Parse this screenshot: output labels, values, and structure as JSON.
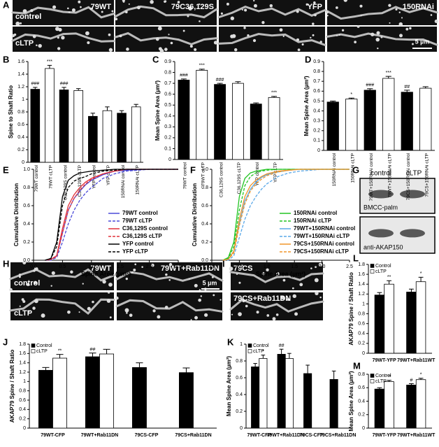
{
  "panel_labels": [
    "A",
    "B",
    "C",
    "D",
    "E",
    "F",
    "G",
    "H",
    "I",
    "J",
    "K",
    "L",
    "M"
  ],
  "images": {
    "A": {
      "columns": [
        "79WT",
        "79C36,129S",
        "YFP",
        "150RNAi"
      ],
      "rows": [
        "control",
        "cLTP"
      ],
      "scale": "5 µm"
    },
    "G": {
      "columns": [
        "control",
        "cLTP"
      ],
      "blots": [
        "BMCC-palm",
        "anti-AKAP150"
      ]
    },
    "H": {
      "columns": [
        "79WT",
        "79WT+Rab11DN"
      ],
      "rows": [
        "control",
        "cLTP"
      ],
      "scale": "5 µm"
    },
    "I": {
      "columns": [
        "79CS",
        "79CS+Rab11DN"
      ]
    }
  },
  "chart_data": [
    {
      "type": "bar",
      "ylabel": "Spine to Shaft Ratio",
      "categories": [
        "79WT control",
        "79WT cLTP",
        "C36,129S control",
        "C36,129S cLTP",
        "YFP control",
        "YFP cLTP",
        "150RNAi control",
        "150RNAi cLTP"
      ],
      "values": [
        1.16,
        1.49,
        1.15,
        1.14,
        0.73,
        0.82,
        0.78,
        0.88
      ],
      "errors": [
        0.03,
        0.05,
        0.04,
        0.03,
        0.05,
        0.06,
        0.04,
        0.04
      ],
      "colors": [
        "#000000",
        "#ffffff",
        "#000000",
        "#ffffff",
        "#000000",
        "#ffffff",
        "#000000",
        "#ffffff"
      ],
      "ylim": [
        0,
        1.6
      ],
      "yticks": [
        0,
        0.2,
        0.4,
        0.6,
        0.8,
        1,
        1.2,
        1.4,
        1.6
      ],
      "annotations": [
        {
          "text": "###",
          "index": 0
        },
        {
          "text": "***",
          "index": 1
        },
        {
          "text": "###",
          "index": 2
        }
      ]
    },
    {
      "type": "bar",
      "ylabel": "Mean Spine Area (µm²)",
      "categories": [
        "79WT control",
        "79WT cLTP",
        "C36,129S control",
        "C36,129S cLTP",
        "YFP control",
        "YFP cLTP"
      ],
      "values": [
        0.73,
        0.82,
        0.69,
        0.7,
        0.51,
        0.57
      ],
      "errors": [
        0.01,
        0.01,
        0.01,
        0.015,
        0.01,
        0.01
      ],
      "colors": [
        "#000000",
        "#ffffff",
        "#000000",
        "#ffffff",
        "#000000",
        "#ffffff"
      ],
      "ylim": [
        0,
        0.9
      ],
      "yticks": [
        0,
        0.1,
        0.2,
        0.3,
        0.4,
        0.5,
        0.6,
        0.7,
        0.8,
        0.9
      ],
      "annotations": [
        {
          "text": "###",
          "index": 0
        },
        {
          "text": "***",
          "index": 1
        },
        {
          "text": "###",
          "index": 2
        },
        {
          "text": "***",
          "index": 5
        }
      ]
    },
    {
      "type": "bar",
      "ylabel": "Mean Spine Area (µm²)",
      "categories": [
        "150RNAi control",
        "150RNAi cLTP",
        "79WT+150RNAi control",
        "79WT+150RNAi cLTP",
        "79CS+150RNAi control",
        "79CS+150RNAi cLTP"
      ],
      "values": [
        0.49,
        0.52,
        0.61,
        0.73,
        0.59,
        0.63
      ],
      "errors": [
        0.01,
        0.01,
        0.015,
        0.02,
        0.02,
        0.015
      ],
      "colors": [
        "#000000",
        "#ffffff",
        "#000000",
        "#ffffff",
        "#000000",
        "#ffffff"
      ],
      "ylim": [
        0,
        0.9
      ],
      "yticks": [
        0,
        0.1,
        0.2,
        0.3,
        0.4,
        0.5,
        0.6,
        0.7,
        0.8,
        0.9
      ],
      "annotations": [
        {
          "text": "*",
          "index": 1
        },
        {
          "text": "###",
          "index": 2
        },
        {
          "text": "***",
          "index": 3
        },
        {
          "text": "##",
          "index": 4
        }
      ]
    },
    {
      "type": "line",
      "xlabel": "Spine Area (µm²)",
      "ylabel": "Cumulative Distribution",
      "legend": "lower right",
      "x": [
        0.2,
        0.3,
        0.4,
        0.5,
        0.6,
        0.7,
        0.8,
        0.9,
        1.0,
        1.2,
        1.4,
        1.6,
        2.0,
        2.5
      ],
      "series": [
        {
          "name": "79WT control",
          "color": "#4a4ad8",
          "dash": false,
          "values": [
            0,
            0.01,
            0.05,
            0.3,
            0.55,
            0.68,
            0.76,
            0.83,
            0.88,
            0.94,
            0.98,
            0.99,
            1,
            1
          ]
        },
        {
          "name": "79WT cLTP",
          "color": "#4a4ad8",
          "dash": true,
          "values": [
            0,
            0,
            0.03,
            0.2,
            0.4,
            0.55,
            0.66,
            0.74,
            0.8,
            0.9,
            0.95,
            0.98,
            1,
            1
          ]
        },
        {
          "name": "C36,129S control",
          "color": "#e0303a",
          "dash": false,
          "values": [
            0,
            0.01,
            0.05,
            0.35,
            0.6,
            0.72,
            0.8,
            0.86,
            0.9,
            0.95,
            0.98,
            1,
            1,
            1
          ]
        },
        {
          "name": "C36,129S cLTP",
          "color": "#e0303a",
          "dash": true,
          "values": [
            0,
            0.01,
            0.04,
            0.3,
            0.55,
            0.68,
            0.77,
            0.84,
            0.89,
            0.95,
            0.98,
            1,
            1,
            1
          ]
        },
        {
          "name": "YFP control",
          "color": "#000000",
          "dash": false,
          "values": [
            0,
            0.02,
            0.2,
            0.7,
            0.88,
            0.93,
            0.96,
            0.97,
            0.98,
            0.99,
            1,
            1,
            1,
            1
          ]
        },
        {
          "name": "YFP cLTP",
          "color": "#000000",
          "dash": true,
          "values": [
            0,
            0.02,
            0.15,
            0.6,
            0.8,
            0.87,
            0.9,
            0.92,
            0.95,
            0.98,
            0.99,
            1,
            1,
            1
          ]
        }
      ],
      "xlim": [
        0,
        2.5
      ],
      "xticks": [
        {
          "value": 0,
          "label": "0.0"
        },
        0.5,
        {
          "value": 1,
          "label": "1.0"
        },
        1.5,
        {
          "value": 2,
          "label": "2.0"
        },
        2.5
      ],
      "ylim": [
        0,
        1
      ],
      "yticks": [
        {
          "value": 0,
          "label": "0.0"
        },
        0.2,
        0.4,
        0.6,
        0.8,
        {
          "value": 1,
          "label": "1.0"
        }
      ]
    },
    {
      "type": "line",
      "xlabel": "Spine Area (µm²)",
      "ylabel": "Cumulative Distribution",
      "legend": "lower right",
      "x": [
        0.2,
        0.3,
        0.4,
        0.5,
        0.6,
        0.7,
        0.8,
        0.9,
        1.0,
        1.2,
        1.4,
        1.6,
        2.0,
        2.5
      ],
      "series": [
        {
          "name": "150RNAi control",
          "color": "#22c422",
          "dash": false,
          "values": [
            0,
            0.03,
            0.2,
            0.7,
            0.9,
            0.96,
            0.98,
            0.99,
            1,
            1,
            1,
            1,
            1,
            1
          ]
        },
        {
          "name": "150RNAi cLTP",
          "color": "#22c422",
          "dash": true,
          "values": [
            0,
            0.02,
            0.15,
            0.55,
            0.82,
            0.92,
            0.96,
            0.98,
            0.99,
            1,
            1,
            1,
            1,
            1
          ]
        },
        {
          "name": "79WT+150RNAi control",
          "color": "#5aa8e8",
          "dash": false,
          "values": [
            0,
            0.01,
            0.1,
            0.4,
            0.65,
            0.78,
            0.86,
            0.91,
            0.94,
            0.97,
            0.99,
            1,
            1,
            1
          ]
        },
        {
          "name": "79WT+150RNAi cLTP",
          "color": "#5aa8e8",
          "dash": true,
          "values": [
            0,
            0,
            0.05,
            0.25,
            0.45,
            0.6,
            0.7,
            0.78,
            0.84,
            0.92,
            0.96,
            0.98,
            1,
            1
          ]
        },
        {
          "name": "79CS+150RNAi control",
          "color": "#f0962a",
          "dash": false,
          "values": [
            0,
            0.01,
            0.1,
            0.45,
            0.7,
            0.82,
            0.88,
            0.92,
            0.95,
            0.98,
            0.99,
            1,
            1,
            1
          ]
        },
        {
          "name": "79CS+150RNAi cLTP",
          "color": "#f0962a",
          "dash": true,
          "values": [
            0,
            0.01,
            0.08,
            0.38,
            0.62,
            0.76,
            0.84,
            0.89,
            0.93,
            0.97,
            0.99,
            1,
            1,
            1
          ]
        }
      ],
      "xlim": [
        0,
        2.5
      ],
      "xticks": [
        {
          "value": 0,
          "label": "0.0"
        },
        0.5,
        {
          "value": 1,
          "label": "1.0"
        },
        1.5,
        {
          "value": 2,
          "label": "2.0"
        },
        2.5
      ],
      "ylim": [
        0,
        1
      ],
      "yticks": [
        {
          "value": 0,
          "label": "0.0"
        },
        0.2,
        0.4,
        0.6,
        0.8,
        {
          "value": 1,
          "label": "1.0"
        }
      ]
    },
    {
      "type": "grouped_bar",
      "ylabel": "AKAP79 Spine / Shaft Ratio",
      "categories": [
        "79WT-CFP",
        "79WT+Rab11DN",
        "79CS-CFP",
        "79CS+Rab11DN"
      ],
      "series": [
        {
          "name": "Control",
          "color": "#000000",
          "values": [
            1.24,
            1.53,
            1.3,
            1.19
          ],
          "errors": [
            0.06,
            0.08,
            0.1,
            0.1
          ]
        },
        {
          "name": "cLTP",
          "color": "#ffffff",
          "values": [
            1.5,
            1.59,
            null,
            null
          ],
          "errors": [
            0.08,
            0.1,
            null,
            null
          ]
        }
      ],
      "ylim": [
        0,
        1.8
      ],
      "yticks": [
        0,
        0.2,
        0.4,
        0.6,
        0.8,
        1,
        1.2,
        1.4,
        1.6,
        1.8
      ],
      "annotations": [
        {
          "text": "**",
          "series": 1,
          "index": 0
        },
        {
          "text": "##",
          "series": 0,
          "index": 1
        }
      ]
    },
    {
      "type": "grouped_bar",
      "ylabel": "Mean Spine Area (µm²)",
      "categories": [
        "79WT-CFP",
        "79WT+Rab11DN",
        "79CS-CFP",
        "79CS+Rab11DN"
      ],
      "series": [
        {
          "name": "Control",
          "color": "#000000",
          "values": [
            0.73,
            0.88,
            0.65,
            0.58
          ],
          "errors": [
            0.04,
            0.06,
            0.1,
            0.1
          ]
        },
        {
          "name": "cLTP",
          "color": "#ffffff",
          "values": [
            0.83,
            0.83,
            null,
            null
          ],
          "errors": [
            0.04,
            0.06,
            null,
            null
          ]
        }
      ],
      "ylim": [
        0,
        1
      ],
      "yticks": [
        0,
        0.2,
        0.4,
        0.6,
        0.8,
        1
      ],
      "annotations": [
        {
          "text": "*",
          "series": 1,
          "index": 0
        },
        {
          "text": "##",
          "series": 0,
          "index": 1
        }
      ]
    },
    {
      "type": "grouped_bar",
      "ylabel": "AKAP79 Spine / Shaft Ratio",
      "categories": [
        "79WT-YFP",
        "79WT+Rab11WT"
      ],
      "series": [
        {
          "name": "Control",
          "color": "#000000",
          "values": [
            1.18,
            1.24
          ],
          "errors": [
            0.05,
            0.06
          ]
        },
        {
          "name": "cLTP",
          "color": "#ffffff",
          "values": [
            1.4,
            1.45
          ],
          "errors": [
            0.07,
            0.09
          ]
        }
      ],
      "ylim": [
        0,
        1.8
      ],
      "yticks": [
        0,
        0.2,
        0.4,
        0.6,
        0.8,
        1,
        1.2,
        1.4,
        1.6,
        1.8
      ],
      "annotations": [
        {
          "text": "**",
          "series": 1,
          "index": 0
        },
        {
          "text": "*",
          "series": 1,
          "index": 1
        }
      ]
    },
    {
      "type": "grouped_bar",
      "ylabel": "Mean Spine Area (µm²)",
      "categories": [
        "79WT-YFP",
        "79WT+Rab11WT"
      ],
      "series": [
        {
          "name": "Control",
          "color": "#000000",
          "values": [
            0.58,
            0.64
          ],
          "errors": [
            0.02,
            0.02
          ]
        },
        {
          "name": "cLTP",
          "color": "#ffffff",
          "values": [
            0.69,
            0.72
          ],
          "errors": [
            0.02,
            0.02
          ]
        }
      ],
      "ylim": [
        0,
        0.8
      ],
      "yticks": [
        0,
        0.2,
        0.4,
        0.6,
        0.8
      ],
      "annotations": [
        {
          "text": "**",
          "series": 1,
          "index": 0
        },
        {
          "text": "#",
          "series": 0,
          "index": 1
        },
        {
          "text": "*",
          "series": 1,
          "index": 1
        }
      ]
    }
  ]
}
